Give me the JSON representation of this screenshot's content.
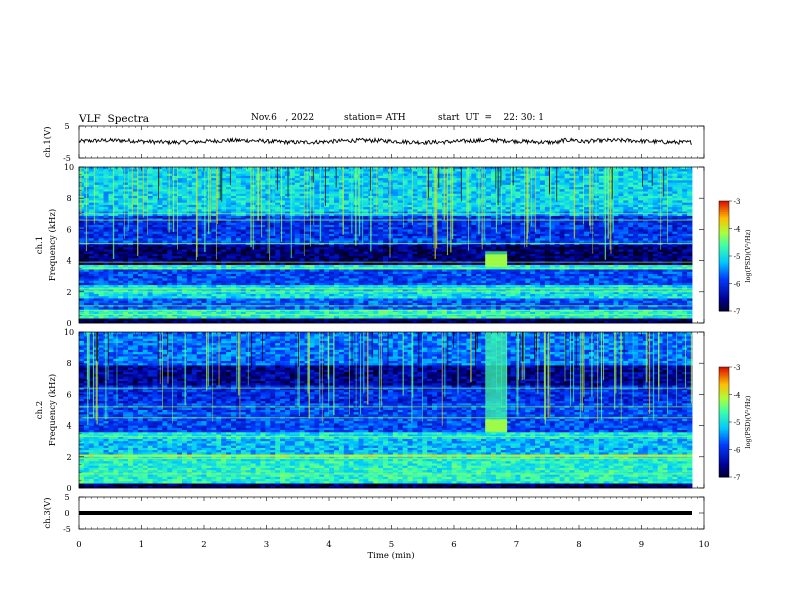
{
  "header": {
    "title": "VLF  Spectra",
    "date": "Nov.6   , 2022",
    "station": "station= ATH",
    "start": "start  UT  =    22: 30: 1"
  },
  "chart_data": [
    {
      "type": "line",
      "panel": "ch1-waveform",
      "ylabel": "ch.1(V)",
      "ylim": [
        -5,
        5
      ],
      "yticks": [
        "5",
        "-5"
      ],
      "xlim": [
        0,
        10
      ],
      "description_values": {
        "baseline_v": 0.2,
        "noise_v": 0.8
      }
    },
    {
      "type": "heatmap",
      "panel": "ch1-spectrogram",
      "ylabel": "ch.1\nFrequency  (kHz)",
      "ylim": [
        0,
        10
      ],
      "yticks": [
        "0",
        "2",
        "4",
        "6",
        "8",
        "10"
      ],
      "xlim": [
        0,
        10
      ],
      "color_scale": {
        "label": "log(PSD)(V²/Hz)",
        "range": [
          -7,
          -3
        ],
        "ticks": [
          "-3",
          "-4",
          "-5",
          "-6",
          "-7"
        ]
      },
      "event": {
        "t_start_min": 6.5,
        "t_end_min": 6.85,
        "f_low_khz": 3.5,
        "f_high_khz": 4.6
      }
    },
    {
      "type": "heatmap",
      "panel": "ch2-spectrogram",
      "ylabel": "ch.2\nFrequency  (kHz)",
      "ylim": [
        0,
        10
      ],
      "yticks": [
        "0",
        "2",
        "4",
        "6",
        "8",
        "10"
      ],
      "xlim": [
        0,
        10
      ],
      "color_scale": {
        "label": "log(PSD)(V²/Hz)",
        "range": [
          -7,
          -3
        ],
        "ticks": [
          "-3",
          "-4",
          "-5",
          "-6",
          "-7"
        ]
      },
      "event": {
        "t_start_min": 6.5,
        "t_end_min": 6.85,
        "f_low_khz": 3.5,
        "f_high_khz": 10
      }
    },
    {
      "type": "line",
      "panel": "ch3-waveform",
      "ylabel": "ch.3(V)",
      "ylim": [
        -5,
        5
      ],
      "yticks": [
        "5",
        "0",
        "-5"
      ],
      "xlim": [
        0,
        10
      ],
      "xlabel": "Time  (min)",
      "xticks": [
        "0",
        "1",
        "2",
        "3",
        "4",
        "5",
        "6",
        "7",
        "8",
        "9",
        "10"
      ],
      "description_values": {
        "constant_v": 0.0
      }
    }
  ]
}
